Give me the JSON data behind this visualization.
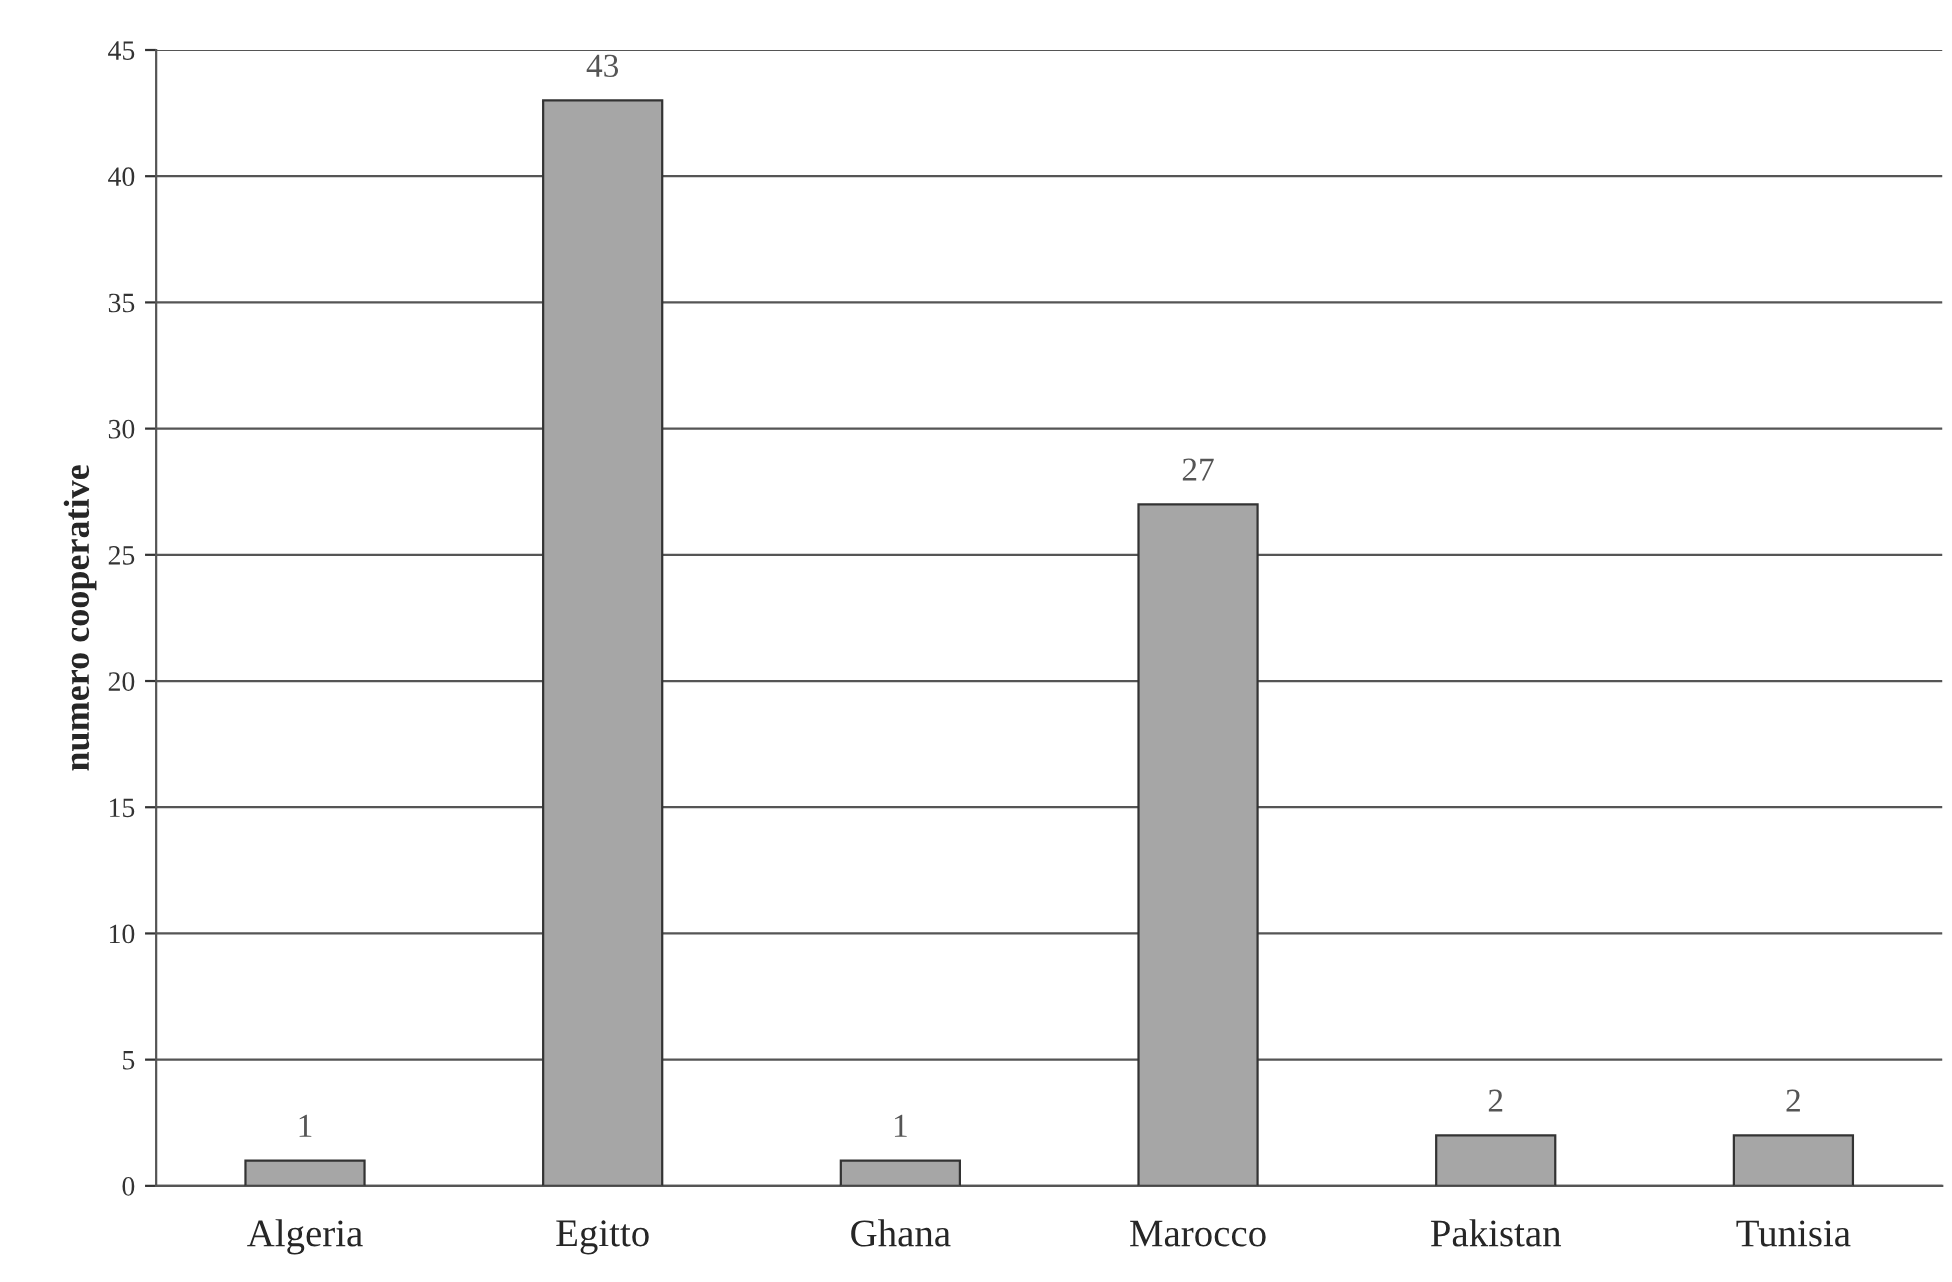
{
  "chart_data": {
    "type": "bar",
    "ylabel": "numero cooperative",
    "categories": [
      "Algeria",
      "Egitto",
      "Ghana",
      "Marocco",
      "Pakistan",
      "Tunisia"
    ],
    "values": [
      1,
      43,
      1,
      27,
      2,
      2
    ],
    "color": "#a6a6a6",
    "ylim": [
      0,
      45
    ],
    "yticks": [
      0,
      5,
      10,
      15,
      20,
      25,
      30,
      35,
      40,
      45
    ],
    "grid": "y",
    "data_labels": true
  }
}
